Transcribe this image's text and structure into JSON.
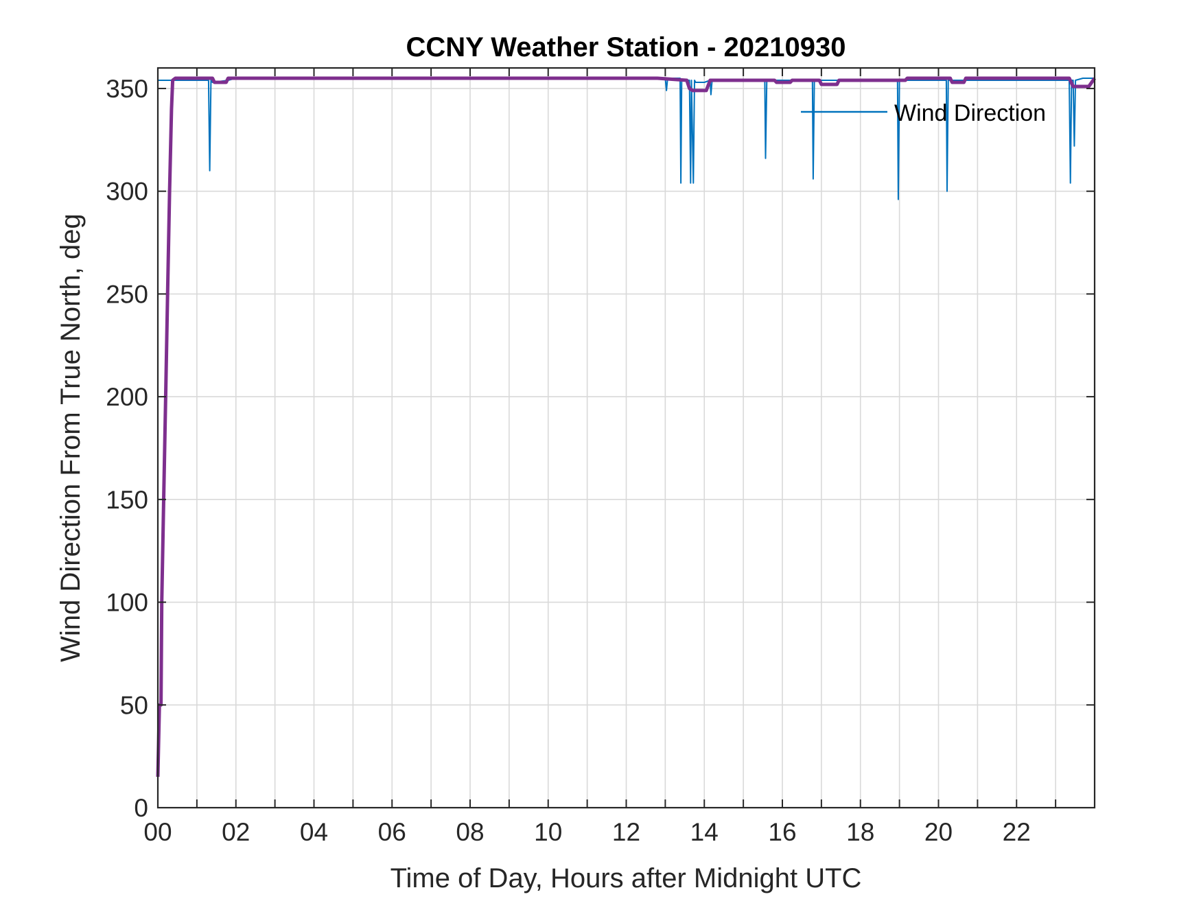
{
  "chart_data": {
    "type": "line",
    "title": "CCNY Weather Station - 20210930",
    "xlabel": "Time of Day, Hours after Midnight UTC",
    "ylabel": "Wind Direction From True North, deg",
    "xlim": [
      0,
      24
    ],
    "ylim": [
      0,
      360
    ],
    "grid": true,
    "legend_location": "top-right",
    "x_ticks": [
      0,
      2,
      4,
      6,
      8,
      10,
      12,
      14,
      16,
      18,
      20,
      22
    ],
    "x_tick_labels": [
      "00",
      "02",
      "04",
      "06",
      "08",
      "10",
      "12",
      "14",
      "16",
      "18",
      "20",
      "22"
    ],
    "x_minor_ticks": [
      1,
      3,
      5,
      7,
      9,
      11,
      13,
      15,
      17,
      19,
      21,
      23
    ],
    "y_ticks": [
      0,
      50,
      100,
      150,
      200,
      250,
      300,
      350
    ],
    "y_tick_labels": [
      "0",
      "50",
      "100",
      "150",
      "200",
      "250",
      "300",
      "350"
    ],
    "series": [
      {
        "name": "Wind Direction",
        "color": "#0072BD",
        "x": [
          0.0,
          0.2,
          0.35,
          1.3,
          1.33,
          1.36,
          1.4,
          1.8,
          2.0,
          13.0,
          13.03,
          13.06,
          13.38,
          13.4,
          13.42,
          13.62,
          13.65,
          13.67,
          13.72,
          13.75,
          13.78,
          14.0,
          14.15,
          14.17,
          14.2,
          15.55,
          15.57,
          15.6,
          16.77,
          16.79,
          16.82,
          18.95,
          18.97,
          19.0,
          20.2,
          20.22,
          20.25,
          23.35,
          23.38,
          23.41,
          23.45,
          23.48,
          23.51,
          23.7,
          24.0
        ],
        "values": [
          354,
          354,
          354,
          354,
          310,
          354,
          353,
          354,
          355,
          355,
          349,
          355,
          355,
          304,
          354,
          354,
          304,
          354,
          304,
          354,
          353,
          353,
          354,
          347,
          354,
          354,
          316,
          354,
          354,
          306,
          354,
          354,
          296,
          354,
          354,
          300,
          354,
          354,
          304,
          354,
          354,
          322,
          354,
          355,
          355
        ]
      },
      {
        "name": "",
        "color": "#7E2F8E",
        "x": [
          0.0,
          0.04,
          0.08,
          0.1,
          0.15,
          0.2,
          0.25,
          0.3,
          0.35,
          0.38,
          0.45,
          1.4,
          1.45,
          1.75,
          1.8,
          12.8,
          13.55,
          13.62,
          13.7,
          14.05,
          14.15,
          15.8,
          15.85,
          16.2,
          16.25,
          16.95,
          17.0,
          17.4,
          17.45,
          19.15,
          19.2,
          20.3,
          20.35,
          20.65,
          20.7,
          23.35,
          23.45,
          23.85,
          24.0
        ],
        "values": [
          15,
          50,
          50,
          100,
          150,
          200,
          250,
          300,
          340,
          354,
          355,
          355,
          353,
          353,
          355,
          355,
          354,
          350,
          349,
          349,
          354,
          354,
          353,
          353,
          354,
          354,
          352,
          352,
          354,
          354,
          355,
          355,
          353,
          353,
          355,
          355,
          351,
          351,
          355
        ]
      }
    ]
  }
}
